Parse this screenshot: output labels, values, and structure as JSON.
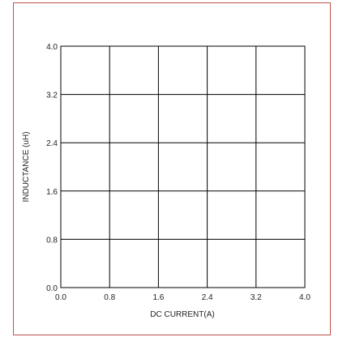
{
  "chart_data": {
    "type": "line",
    "title": "",
    "xlabel": "DC CURRENT(A)",
    "ylabel": "INDUCTANCE (uH)",
    "xlim": [
      0.0,
      4.0
    ],
    "ylim": [
      0.0,
      4.0
    ],
    "x_ticks": [
      "0.0",
      "0.8",
      "1.6",
      "2.4",
      "3.2",
      "4.0"
    ],
    "y_ticks": [
      "0.0",
      "0.8",
      "1.6",
      "2.4",
      "3.2",
      "4.0"
    ],
    "grid": true,
    "series": []
  },
  "colors": {
    "frame_border": "#c0504d",
    "grid": "#000000",
    "text": "#222222"
  }
}
